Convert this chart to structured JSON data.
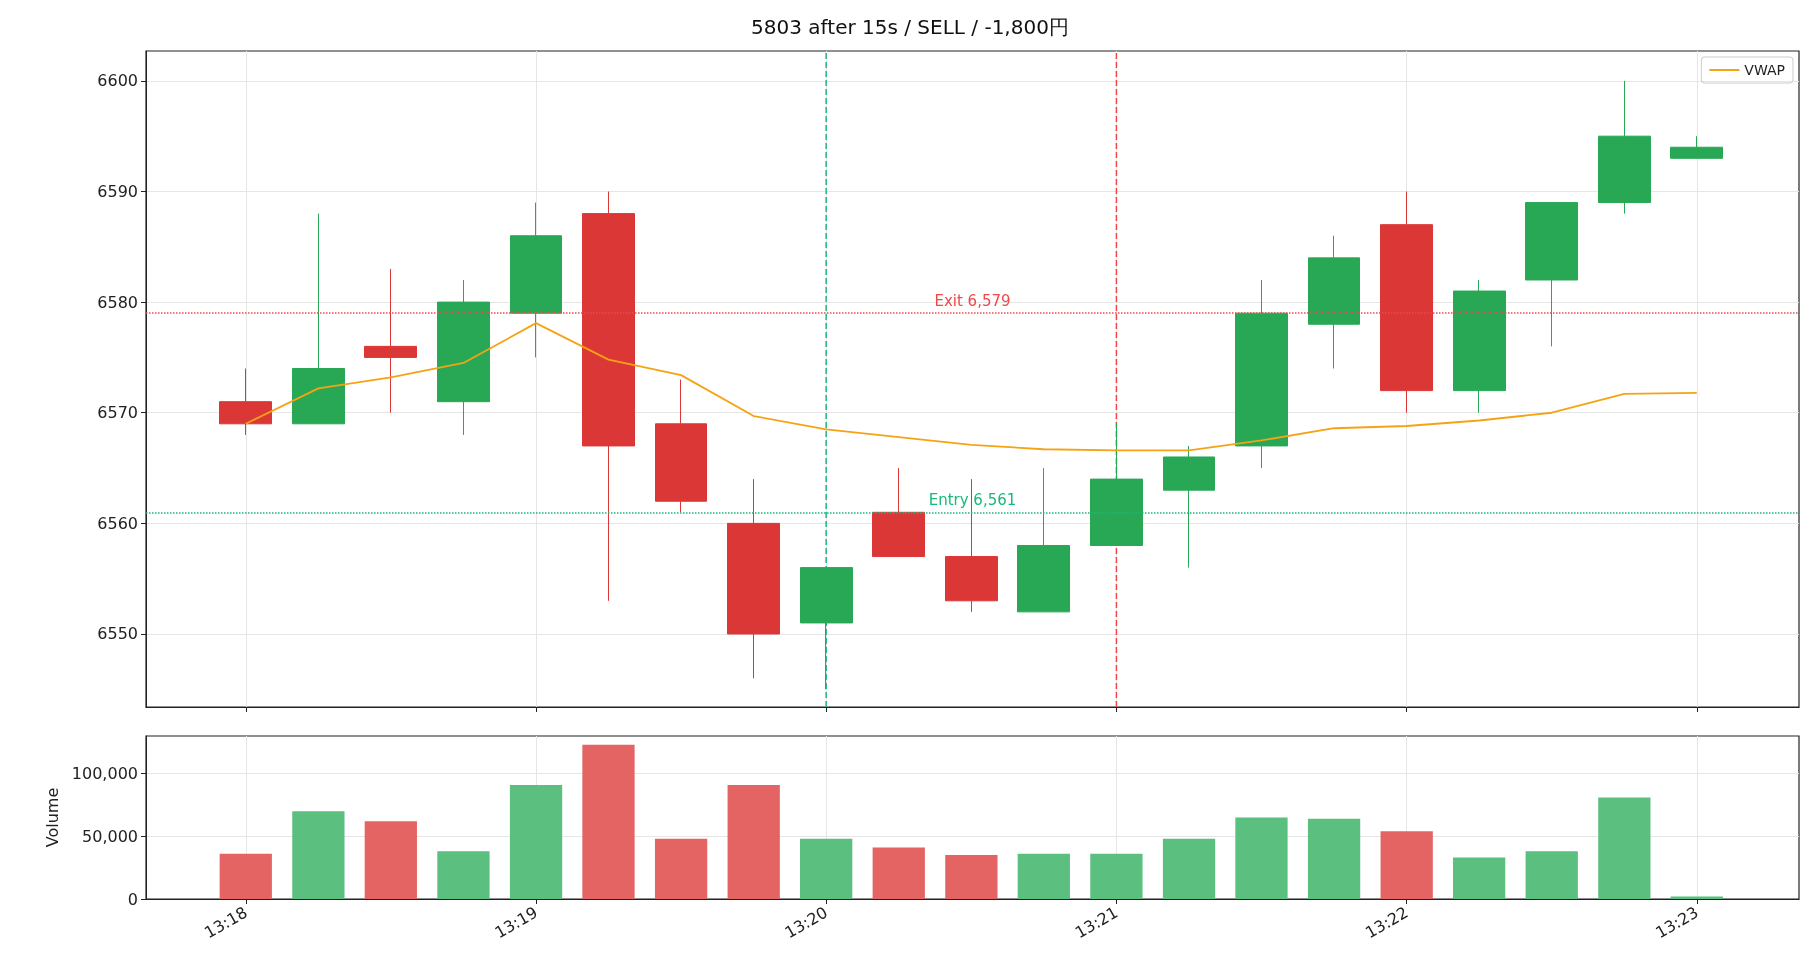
{
  "chart_data": [
    {
      "type": "candlestick",
      "title": "5803 after 15s / SELL / -1,800円",
      "x": [
        13.3,
        13.30417,
        13.30833,
        13.3125,
        13.31667,
        13.32083,
        13.325,
        13.32917,
        13.33333,
        13.3375,
        13.34167,
        13.34583,
        13.35,
        13.35417,
        13.35833,
        13.3625,
        13.36667,
        13.37083,
        13.375,
        13.37917,
        13.38333
      ],
      "ohlc": [
        [
          6571,
          6574,
          6568,
          6569
        ],
        [
          6569,
          6588,
          6569,
          6574
        ],
        [
          6576,
          6583,
          6570,
          6575
        ],
        [
          6571,
          6582,
          6568,
          6580
        ],
        [
          6579,
          6589,
          6575,
          6586
        ],
        [
          6588,
          6590,
          6553,
          6567
        ],
        [
          6569,
          6573,
          6561,
          6562
        ],
        [
          6560,
          6564,
          6546,
          6550
        ],
        [
          6551,
          6556,
          6545,
          6556
        ],
        [
          6561,
          6565,
          6557,
          6557
        ],
        [
          6557,
          6564,
          6552,
          6553
        ],
        [
          6552,
          6565,
          6552,
          6558
        ],
        [
          6558,
          6569,
          6558,
          6564
        ],
        [
          6563,
          6567,
          6556,
          6566
        ],
        [
          6567,
          6582,
          6565,
          6579
        ],
        [
          6578,
          6586,
          6574,
          6584
        ],
        [
          6587,
          6590,
          6570,
          6572
        ],
        [
          6572,
          6582,
          6570,
          6581
        ],
        [
          6582,
          6589,
          6576,
          6589
        ],
        [
          6589,
          6600,
          6588,
          6595
        ],
        [
          6593,
          6595,
          6593,
          6594
        ]
      ],
      "colors": [
        "#dc3737",
        "#28a855",
        "#dc3737",
        "#28a855",
        "#28a855",
        "#dc3737",
        "#dc3737",
        "#dc3737",
        "#28a855",
        "#dc3737",
        "#dc3737",
        "#28a855",
        "#28a855",
        "#28a855",
        "#28a855",
        "#28a855",
        "#dc3737",
        "#28a855",
        "#28a855",
        "#28a855",
        "#28a855"
      ],
      "series": [
        {
          "name": "VWAP",
          "type": "line",
          "color": "#f5a314",
          "values": [
            6569,
            6572.2,
            6573.2,
            6574.5,
            6578.1,
            6574.8,
            6573.4,
            6569.7,
            6568.5,
            6567.8,
            6567.1,
            6566.7,
            6566.6,
            6566.6,
            6567.5,
            6568.6,
            6568.8,
            6569.3,
            6570,
            6571.7,
            6571.8
          ]
        }
      ],
      "xlim": [
        13.29427,
        13.3892
      ],
      "xticks": [
        {
          "value": 13.3,
          "label": null
        },
        {
          "value": 13.31667,
          "label": null
        },
        {
          "value": 13.33333,
          "label": null
        },
        {
          "value": 13.35,
          "label": null
        },
        {
          "value": 13.36667,
          "label": null
        },
        {
          "value": 13.38333,
          "label": null
        }
      ],
      "ylim": [
        6543.4,
        6602.7
      ],
      "yticks": [
        6550,
        6560,
        6570,
        6580,
        6590,
        6600
      ],
      "grid": true,
      "legend": "top right",
      "tick_labels": "y",
      "ref_lines": [
        {
          "axis": "y",
          "value": 6561,
          "label": "Entry 6,561",
          "color": "#18b87a",
          "line_style": "dotted"
        },
        {
          "axis": "y",
          "value": 6579,
          "label": "Exit 6,579",
          "color": "#f04848",
          "line_style": "dotted"
        },
        {
          "axis": "x",
          "value": 13.33333,
          "color": "#18b87a",
          "line_style": "dashed"
        },
        {
          "axis": "x",
          "value": 13.35,
          "color": "#f04848",
          "line_style": "dashed"
        }
      ]
    },
    {
      "type": "bar",
      "ylabel": "Volume",
      "x": [
        13.3,
        13.30417,
        13.30833,
        13.3125,
        13.31667,
        13.32083,
        13.325,
        13.32917,
        13.33333,
        13.3375,
        13.34167,
        13.34583,
        13.35,
        13.35417,
        13.35833,
        13.3625,
        13.36667,
        13.37083,
        13.375,
        13.37917,
        13.38333
      ],
      "values": [
        36000,
        70000,
        62000,
        38000,
        91000,
        123000,
        48000,
        91000,
        48000,
        41000,
        35000,
        36000,
        36000,
        48000,
        65000,
        64000,
        54000,
        33000,
        38000,
        81000,
        2000
      ],
      "colors": [
        "#e46464",
        "#5bbf80",
        "#e46464",
        "#5bbf80",
        "#5bbf80",
        "#e46464",
        "#e46464",
        "#e46464",
        "#5bbf80",
        "#e46464",
        "#e46464",
        "#5bbf80",
        "#5bbf80",
        "#5bbf80",
        "#5bbf80",
        "#5bbf80",
        "#e46464",
        "#5bbf80",
        "#5bbf80",
        "#5bbf80",
        "#5bbf80"
      ],
      "xlim": [
        13.29427,
        13.3892
      ],
      "xticks": [
        {
          "value": 13.3,
          "label": "13:18"
        },
        {
          "value": 13.31667,
          "label": "13:19"
        },
        {
          "value": 13.33333,
          "label": "13:20"
        },
        {
          "value": 13.35,
          "label": "13:21"
        },
        {
          "value": 13.36667,
          "label": "13:22"
        },
        {
          "value": 13.38333,
          "label": "13:23"
        }
      ],
      "ylim": [
        0,
        130000
      ],
      "yticks": [
        0,
        {
          "value": 50000,
          "label": "50,000"
        },
        {
          "value": 100000,
          "label": "100,000"
        }
      ],
      "grid": true
    }
  ]
}
